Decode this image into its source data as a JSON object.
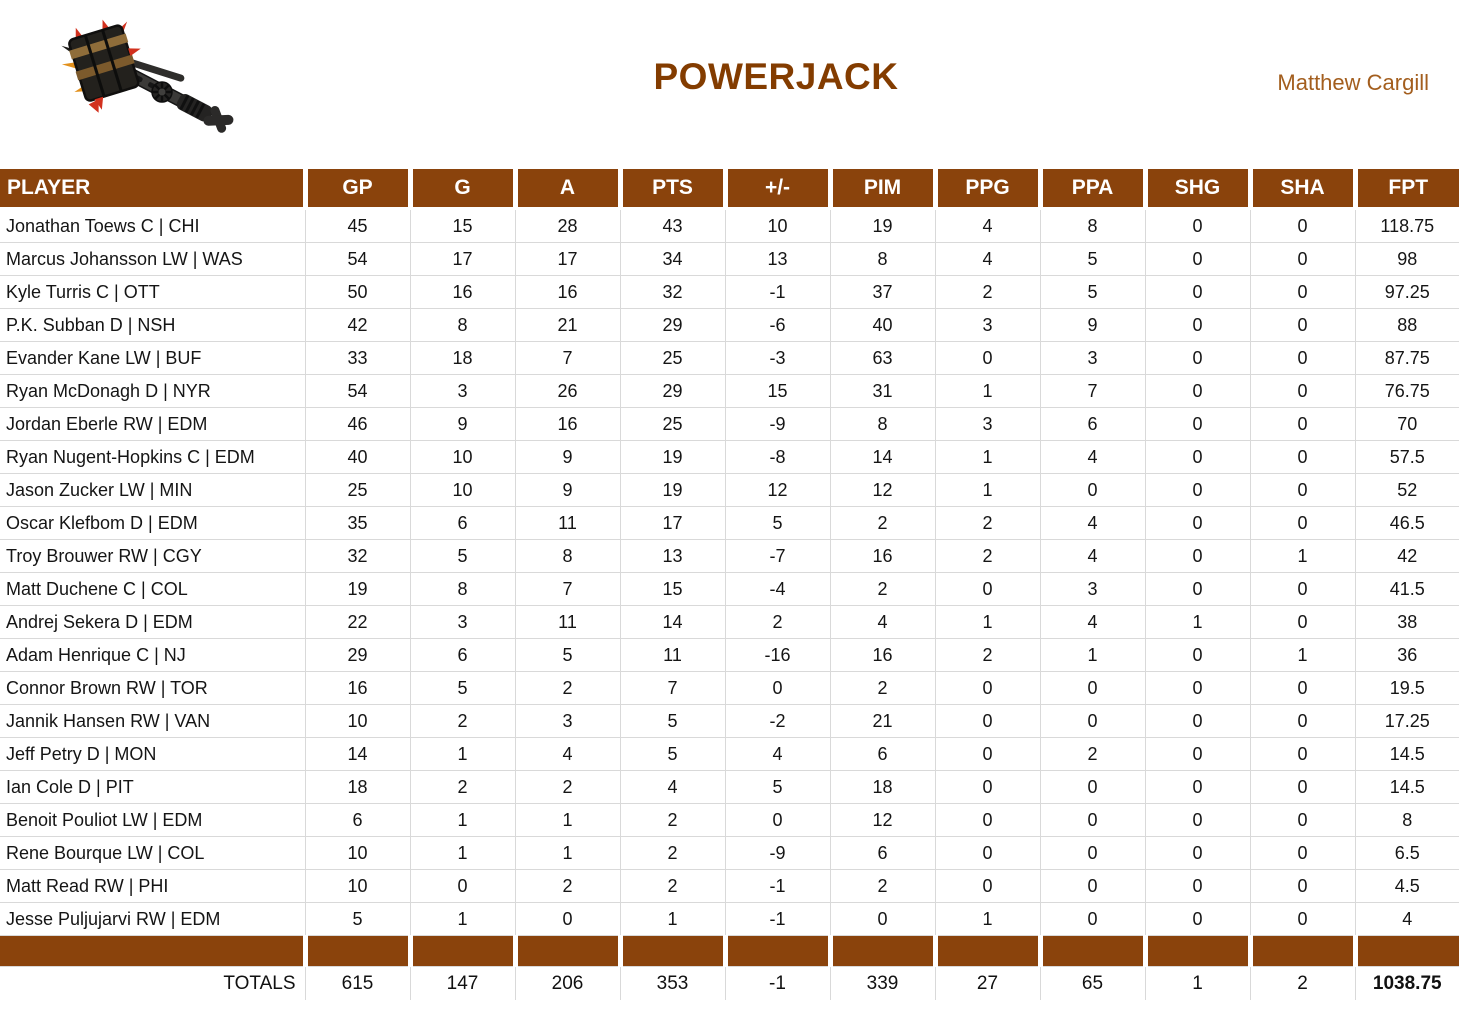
{
  "header": {
    "title": "POWERJACK",
    "owner": "Matthew Cargill",
    "logo_icon": "powerjack-hammer-icon"
  },
  "colors": {
    "table_brown": "#8A430C",
    "title_brown": "#833C00",
    "owner_brown": "#A35E1E",
    "gridline": "#D9D9D9",
    "header_text": "#FFFFFF"
  },
  "table": {
    "columns": [
      "PLAYER",
      "GP",
      "G",
      "A",
      "PTS",
      "+/-",
      "PIM",
      "PPG",
      "PPA",
      "SHG",
      "SHA",
      "FPT"
    ],
    "rows": [
      [
        "Jonathan Toews C | CHI",
        45,
        15,
        28,
        43,
        10,
        19,
        4,
        8,
        0,
        0,
        "118.75"
      ],
      [
        "Marcus Johansson LW | WAS",
        54,
        17,
        17,
        34,
        13,
        8,
        4,
        5,
        0,
        0,
        "98"
      ],
      [
        "Kyle Turris C | OTT",
        50,
        16,
        16,
        32,
        -1,
        37,
        2,
        5,
        0,
        0,
        "97.25"
      ],
      [
        "P.K. Subban D | NSH",
        42,
        8,
        21,
        29,
        -6,
        40,
        3,
        9,
        0,
        0,
        "88"
      ],
      [
        "Evander Kane LW | BUF",
        33,
        18,
        7,
        25,
        -3,
        63,
        0,
        3,
        0,
        0,
        "87.75"
      ],
      [
        "Ryan McDonagh D | NYR",
        54,
        3,
        26,
        29,
        15,
        31,
        1,
        7,
        0,
        0,
        "76.75"
      ],
      [
        "Jordan Eberle RW | EDM",
        46,
        9,
        16,
        25,
        -9,
        8,
        3,
        6,
        0,
        0,
        "70"
      ],
      [
        "Ryan Nugent-Hopkins C | EDM",
        40,
        10,
        9,
        19,
        -8,
        14,
        1,
        4,
        0,
        0,
        "57.5"
      ],
      [
        "Jason Zucker LW | MIN",
        25,
        10,
        9,
        19,
        12,
        12,
        1,
        0,
        0,
        0,
        "52"
      ],
      [
        "Oscar Klefbom D | EDM",
        35,
        6,
        11,
        17,
        5,
        2,
        2,
        4,
        0,
        0,
        "46.5"
      ],
      [
        "Troy Brouwer RW | CGY",
        32,
        5,
        8,
        13,
        -7,
        16,
        2,
        4,
        0,
        1,
        "42"
      ],
      [
        "Matt Duchene C | COL",
        19,
        8,
        7,
        15,
        -4,
        2,
        0,
        3,
        0,
        0,
        "41.5"
      ],
      [
        "Andrej Sekera D | EDM",
        22,
        3,
        11,
        14,
        2,
        4,
        1,
        4,
        1,
        0,
        "38"
      ],
      [
        "Adam Henrique C | NJ",
        29,
        6,
        5,
        11,
        -16,
        16,
        2,
        1,
        0,
        1,
        "36"
      ],
      [
        "Connor Brown RW | TOR",
        16,
        5,
        2,
        7,
        0,
        2,
        0,
        0,
        0,
        0,
        "19.5"
      ],
      [
        "Jannik Hansen RW | VAN",
        10,
        2,
        3,
        5,
        -2,
        21,
        0,
        0,
        0,
        0,
        "17.25"
      ],
      [
        "Jeff Petry D | MON",
        14,
        1,
        4,
        5,
        4,
        6,
        0,
        2,
        0,
        0,
        "14.5"
      ],
      [
        "Ian Cole D | PIT",
        18,
        2,
        2,
        4,
        5,
        18,
        0,
        0,
        0,
        0,
        "14.5"
      ],
      [
        "Benoit Pouliot LW | EDM",
        6,
        1,
        1,
        2,
        0,
        12,
        0,
        0,
        0,
        0,
        "8"
      ],
      [
        "Rene Bourque LW | COL",
        10,
        1,
        1,
        2,
        -9,
        6,
        0,
        0,
        0,
        0,
        "6.5"
      ],
      [
        "Matt Read RW | PHI",
        10,
        0,
        2,
        2,
        -1,
        2,
        0,
        0,
        0,
        0,
        "4.5"
      ],
      [
        "Jesse Puljujarvi RW | EDM",
        5,
        1,
        0,
        1,
        -1,
        0,
        1,
        0,
        0,
        0,
        "4"
      ]
    ],
    "totals_label": "TOTALS",
    "totals": [
      615,
      147,
      206,
      353,
      -1,
      339,
      27,
      65,
      1,
      2,
      "1038.75"
    ]
  }
}
